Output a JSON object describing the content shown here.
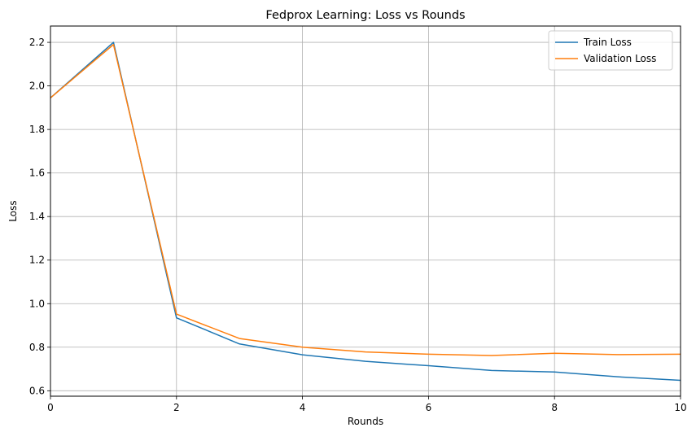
{
  "chart_data": {
    "type": "line",
    "title": "Fedprox Learning: Loss vs Rounds",
    "xlabel": "Rounds",
    "ylabel": "Loss",
    "xlim": [
      0,
      10
    ],
    "ylim": [
      0.575,
      2.275
    ],
    "x_ticks": [
      0,
      2,
      4,
      6,
      8,
      10
    ],
    "y_ticks": [
      0.6,
      0.8,
      1.0,
      1.2,
      1.4,
      1.6,
      1.8,
      2.0,
      2.2
    ],
    "x_tick_labels": [
      "0",
      "2",
      "4",
      "6",
      "8",
      "10"
    ],
    "y_tick_labels": [
      "0.6",
      "0.8",
      "1.0",
      "1.2",
      "1.4",
      "1.6",
      "1.8",
      "2.0",
      "2.2"
    ],
    "grid": true,
    "legend_position": "top-right",
    "x": [
      0,
      1,
      2,
      3,
      4,
      5,
      6,
      7,
      8,
      9,
      10
    ],
    "series": [
      {
        "name": "Train Loss",
        "color": "#1f77b4",
        "values": [
          1.945,
          2.2,
          0.935,
          0.815,
          0.765,
          0.735,
          0.715,
          0.693,
          0.686,
          0.664,
          0.648
        ]
      },
      {
        "name": "Validation Loss",
        "color": "#ff7f0e",
        "values": [
          1.945,
          2.19,
          0.952,
          0.84,
          0.8,
          0.778,
          0.768,
          0.762,
          0.772,
          0.766,
          0.768
        ]
      }
    ]
  }
}
